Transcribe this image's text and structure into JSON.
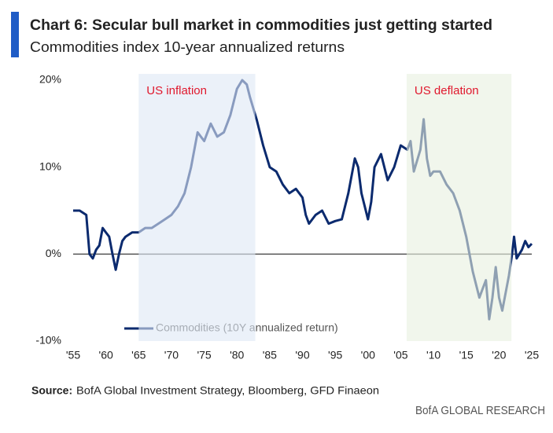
{
  "chart_data": {
    "type": "line",
    "title": "Chart 6: Secular bull market in commodities just getting started",
    "subtitle": "Commodities index 10-year annualized returns",
    "source_label": "Source:",
    "source": "BofA Global Investment Strategy, Bloomberg, GFD Finaeon",
    "brand": "BofA GLOBAL RESEARCH",
    "x": [
      1955,
      1956,
      1957,
      1957.5,
      1958,
      1958.5,
      1959,
      1959.5,
      1960,
      1960.5,
      1961,
      1961.5,
      1962,
      1962.5,
      1963,
      1964,
      1965,
      1966,
      1967,
      1968,
      1969,
      1970,
      1971,
      1972,
      1973,
      1974,
      1975,
      1976,
      1977,
      1978,
      1979,
      1980,
      1980.8,
      1981.5,
      1982,
      1983,
      1984,
      1985,
      1986,
      1987,
      1988,
      1989,
      1990,
      1990.5,
      1991,
      1992,
      1993,
      1994,
      1995,
      1996,
      1997,
      1998,
      1998.5,
      1999,
      2000,
      2000.5,
      2001,
      2002,
      2003,
      2004,
      2005,
      2006,
      2006.5,
      2007,
      2008,
      2008.5,
      2009,
      2009.5,
      2010,
      2011,
      2012,
      2013,
      2014,
      2015,
      2016,
      2017,
      2017.5,
      2018,
      2018.5,
      2019,
      2019.5,
      2020,
      2020.5,
      2021,
      2021.5,
      2022,
      2022.3,
      2022.7,
      2023.5,
      2024,
      2024.5,
      2025
    ],
    "series": [
      {
        "name": "Commodities (10Y annualized return)",
        "color": "#0b2a6e",
        "values": [
          5,
          5,
          4.5,
          0,
          -0.5,
          0.5,
          1,
          3,
          2.5,
          2,
          0,
          -1.8,
          0,
          1.5,
          2,
          2.5,
          2.5,
          3,
          3,
          3.5,
          4,
          4.5,
          5.5,
          7,
          10,
          14,
          13,
          15,
          13.5,
          14,
          16,
          19,
          20,
          19.5,
          18,
          15.5,
          12.5,
          10,
          9.5,
          8,
          7,
          7.5,
          6.5,
          4.5,
          3.5,
          4.5,
          5,
          3.5,
          3.8,
          4,
          7,
          11,
          10,
          7,
          4,
          6,
          10,
          11.5,
          8.5,
          10,
          12.5,
          12,
          13,
          9.5,
          12,
          15.5,
          11,
          9,
          9.5,
          9.5,
          8,
          7,
          5,
          2,
          -2,
          -5,
          -4,
          -3,
          -7.5,
          -5,
          -1.5,
          -5,
          -6.5,
          -4.5,
          -2.5,
          0,
          2,
          -0.5,
          0.5,
          1.5,
          0.8,
          1.2
        ]
      }
    ],
    "shading": [
      {
        "label": "US inflation",
        "start": 1965,
        "end": 1982.8,
        "color": "#dde8f5"
      },
      {
        "label": "US deflation",
        "start": 2005.9,
        "end": 2021.9,
        "color": "#e8f0df"
      }
    ],
    "annotation_color": "#e0182d",
    "xlim": [
      1955,
      2025
    ],
    "xticks": [
      {
        "value": 1955,
        "label": "'55"
      },
      {
        "value": 1960,
        "label": "'60"
      },
      {
        "value": 1965,
        "label": "'65"
      },
      {
        "value": 1970,
        "label": "'70"
      },
      {
        "value": 1975,
        "label": "'75"
      },
      {
        "value": 1980,
        "label": "'80"
      },
      {
        "value": 1985,
        "label": "'85"
      },
      {
        "value": 1990,
        "label": "'90"
      },
      {
        "value": 1995,
        "label": "'95"
      },
      {
        "value": 2000,
        "label": "'00"
      },
      {
        "value": 2005,
        "label": "'05"
      },
      {
        "value": 2010,
        "label": "'10"
      },
      {
        "value": 2015,
        "label": "'15"
      },
      {
        "value": 2020,
        "label": "'20"
      },
      {
        "value": 2025,
        "label": "'25"
      }
    ],
    "ylim": [
      -10,
      20
    ],
    "yticks": [
      {
        "value": -10,
        "label": "-10%"
      },
      {
        "value": 0,
        "label": "0%"
      },
      {
        "value": 10,
        "label": "10%"
      },
      {
        "value": 20,
        "label": "20%"
      }
    ]
  }
}
